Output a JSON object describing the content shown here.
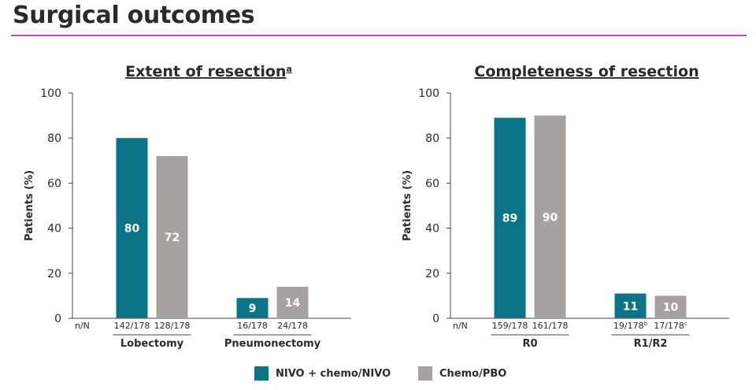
{
  "page": {
    "title": "Surgical outcomes"
  },
  "colors": {
    "nivo": "#0c7487",
    "chemo": "#a7a1a0",
    "accent": "#b94bc7",
    "text": "#2b2b2b"
  },
  "legend": [
    {
      "label": "NIVO + chemo/NIVO",
      "color": "#0c7487"
    },
    {
      "label": "Chemo/PBO",
      "color": "#a7a1a0"
    }
  ],
  "chart_data": [
    {
      "type": "bar",
      "title": "Extent of resection",
      "title_superscript": "a",
      "ylabel": "Patients (%)",
      "ylim": [
        0,
        100
      ],
      "yticks": [
        0,
        20,
        40,
        60,
        80,
        100
      ],
      "n_label": "n/N",
      "categories": [
        "Lobectomy",
        "Pneumonectomy"
      ],
      "series": [
        {
          "name": "NIVO + chemo/NIVO",
          "values": [
            80,
            9
          ],
          "labels": [
            "80",
            "9"
          ],
          "nN": [
            [
              "142/178",
              ""
            ],
            [
              "16/178",
              ""
            ]
          ]
        },
        {
          "name": "Chemo/PBO",
          "values": [
            72,
            14
          ],
          "labels": [
            "72",
            "14"
          ],
          "nN": [
            [
              "128/178",
              ""
            ],
            [
              "24/178",
              ""
            ]
          ]
        }
      ]
    },
    {
      "type": "bar",
      "title": "Completeness of resection",
      "title_superscript": "",
      "ylabel": "Patients (%)",
      "ylim": [
        0,
        100
      ],
      "yticks": [
        0,
        20,
        40,
        60,
        80,
        100
      ],
      "n_label": "n/N",
      "categories": [
        "R0",
        "R1/R2"
      ],
      "series": [
        {
          "name": "NIVO + chemo/NIVO",
          "values": [
            89,
            11
          ],
          "labels": [
            "89",
            "11"
          ],
          "nN": [
            [
              "159/178",
              ""
            ],
            [
              "19/178",
              "b"
            ]
          ]
        },
        {
          "name": "Chemo/PBO",
          "values": [
            90,
            10
          ],
          "labels": [
            "90",
            "10"
          ],
          "nN": [
            [
              "161/178",
              ""
            ],
            [
              "17/178",
              "c"
            ]
          ]
        }
      ]
    }
  ]
}
